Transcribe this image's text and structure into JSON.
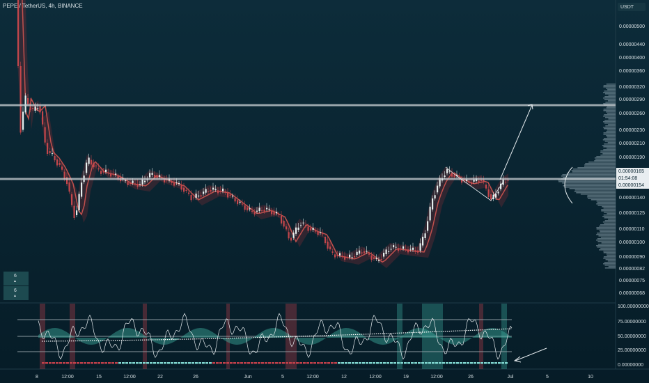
{
  "header": {
    "title": "PEPE / TetherUS, 4h, BINANCE",
    "currency": "USDT"
  },
  "price_axis": {
    "labels": [
      "0.00000500",
      "0.00000440",
      "0.00000400",
      "0.00000360",
      "0.00000320",
      "0.00000290",
      "0.00000260",
      "0.00000230",
      "0.00000210",
      "0.00000190",
      "0.00000140",
      "0.00000125",
      "0.00000110",
      "0.00000100",
      "0.00000090",
      "0.00000082",
      "0.00000075",
      "0.00000068"
    ]
  },
  "last_price": {
    "price": "0.00000165",
    "countdown": "01:54:08",
    "marker": "0.00000154"
  },
  "indicator_axis": {
    "labels": [
      "100.00000000",
      "75.00000000",
      "50.00000000",
      "25.00000000",
      "0.00000000"
    ]
  },
  "time_axis": {
    "labels": [
      "8",
      "12:00",
      "15",
      "12:00",
      "22",
      "26",
      "Jun",
      "5",
      "12:00",
      "12",
      "12:00",
      "19",
      "12:00",
      "26",
      "Jul",
      "5",
      "10"
    ]
  },
  "widget": {
    "values": [
      "6",
      "6"
    ]
  }
}
